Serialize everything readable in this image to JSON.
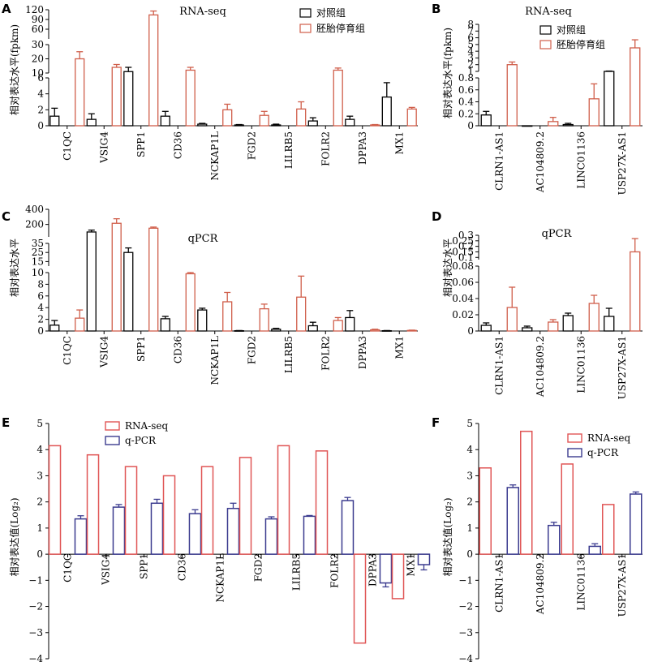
{
  "colors": {
    "control": "#000000",
    "stopped": "#d05e4a",
    "rnaseq": "#e05555",
    "qpcr": "#3b3b8f"
  },
  "chart_data": [
    {
      "panel": "A",
      "type": "bar",
      "title": "RNA-seq",
      "ylabel": "相对表达水平(fpkm)",
      "broken_axis": true,
      "segments": [
        {
          "range": [
            0,
            6
          ],
          "ticks": [
            0,
            2,
            4,
            6
          ]
        },
        {
          "range": [
            10,
            30
          ],
          "ticks": [
            10,
            20,
            30
          ]
        },
        {
          "range": [
            30,
            120
          ],
          "ticks": [
            60,
            90,
            120
          ]
        }
      ],
      "categories": [
        "C1QC",
        "VSIG4",
        "SPP1",
        "CD36",
        "NCKAP1L",
        "FGD2",
        "LILRB5",
        "FOLR2",
        "DPPA3",
        "MX1"
      ],
      "legend_position": "top-right",
      "series": [
        {
          "name": "对照组",
          "color": "#000000",
          "values": [
            1.2,
            0.8,
            11,
            1.2,
            0.2,
            0.1,
            0.1,
            0.6,
            0.8,
            3.6
          ],
          "errors": [
            1.0,
            0.7,
            3,
            0.6,
            0.1,
            0.05,
            0.1,
            0.4,
            0.4,
            1.8
          ]
        },
        {
          "name": "胚胎停育组",
          "color": "#d05e4a",
          "values": [
            20,
            14,
            104,
            12,
            2.0,
            1.3,
            2.1,
            12,
            0.1,
            2.1
          ],
          "errors": [
            5,
            2,
            12,
            2,
            0.7,
            0.5,
            0.9,
            1.5,
            0.05,
            0.2
          ]
        }
      ]
    },
    {
      "panel": "B",
      "type": "bar",
      "title": "RNA-seq",
      "ylabel": "相对表达水平(fpkm)",
      "broken_axis": true,
      "segments": [
        {
          "range": [
            0,
            0.8
          ],
          "ticks": [
            0,
            0.2,
            0.4,
            0.6,
            0.8
          ]
        },
        {
          "range": [
            1,
            8
          ],
          "ticks": [
            1,
            2,
            3,
            4,
            5,
            6,
            7,
            8
          ]
        }
      ],
      "categories": [
        "CLRN1-AS1",
        "AC104809.2",
        "LINC01136",
        "USP27X-AS1"
      ],
      "legend_position": "top-left",
      "series": [
        {
          "name": "对照组",
          "color": "#000000",
          "values": [
            0.18,
            0.0,
            0.02,
            0.95
          ],
          "errors": [
            0.06,
            0.0,
            0.02,
            0.1
          ]
        },
        {
          "name": "胚胎停育组",
          "color": "#d05e4a",
          "values": [
            2.0,
            0.07,
            0.45,
            4.5
          ],
          "errors": [
            0.4,
            0.07,
            0.25,
            1.2
          ]
        }
      ]
    },
    {
      "panel": "C",
      "type": "bar",
      "title": "qPCR",
      "ylabel": "相对表达水平",
      "broken_axis": true,
      "segments": [
        {
          "range": [
            0,
            10
          ],
          "ticks": [
            0,
            2,
            4,
            6,
            8,
            10
          ]
        },
        {
          "range": [
            10,
            35
          ],
          "ticks": [
            15,
            25,
            35
          ]
        },
        {
          "range": [
            35,
            400
          ],
          "ticks": [
            200,
            400
          ]
        }
      ],
      "categories": [
        "C1QC",
        "VSIG4",
        "SPP1",
        "CD36",
        "NCKAP1L",
        "FGD2",
        "LILRB5",
        "FOLR2",
        "DPPA3",
        "MX1"
      ],
      "series": [
        {
          "name": "对照组",
          "color": "#000000",
          "values": [
            1.0,
            100,
            25,
            2.1,
            3.6,
            0.05,
            0.3,
            0.9,
            2.3,
            0.05
          ],
          "errors": [
            0.8,
            25,
            5,
            0.4,
            0.3,
            0.03,
            0.15,
            0.6,
            1.2,
            0.03
          ]
        },
        {
          "name": "胚胎停育组",
          "color": "#d05e4a",
          "values": [
            2.2,
            215,
            150,
            9.8,
            5.0,
            3.8,
            5.8,
            1.8,
            0.2,
            0.1
          ],
          "errors": [
            1.4,
            60,
            15,
            0.2,
            1.6,
            0.8,
            3.6,
            0.5,
            0.1,
            0.05
          ]
        }
      ]
    },
    {
      "panel": "D",
      "type": "bar",
      "title": "qPCR",
      "ylabel": "相对表达水平",
      "broken_axis": true,
      "segments": [
        {
          "range": [
            0,
            0.08
          ],
          "ticks": [
            0,
            0.02,
            0.04,
            0.06,
            0.08
          ]
        },
        {
          "range": [
            0.08,
            0.3
          ],
          "ticks": [
            0.1,
            0.15,
            0.2,
            0.25,
            0.3
          ]
        }
      ],
      "categories": [
        "CLRN1-AS1",
        "AC104809.2",
        "LINC01136",
        "USP27X-AS1"
      ],
      "series": [
        {
          "name": "对照组",
          "color": "#000000",
          "values": [
            0.007,
            0.004,
            0.019,
            0.018
          ],
          "errors": [
            0.003,
            0.002,
            0.003,
            0.01
          ]
        },
        {
          "name": "胚胎停育组",
          "color": "#d05e4a",
          "values": [
            0.029,
            0.011,
            0.034,
            0.15
          ],
          "errors": [
            0.025,
            0.003,
            0.01,
            0.12
          ]
        }
      ]
    },
    {
      "panel": "E",
      "type": "bar",
      "ylabel": "相对表达值(Log₂)",
      "ylim": [
        -4,
        5
      ],
      "ticks": [
        -4,
        -3,
        -2,
        -1,
        0,
        1,
        2,
        3,
        4,
        5
      ],
      "categories": [
        "C1QC",
        "VSIG4",
        "SPP1",
        "CD36",
        "NCKAP1L",
        "FGD2",
        "LILRB5",
        "FOLR2",
        "DPPA3",
        "MX1"
      ],
      "legend_position": "top-left",
      "series": [
        {
          "name": "RNA-seq",
          "color": "#e05555",
          "values": [
            4.15,
            3.8,
            3.35,
            3.0,
            3.35,
            3.7,
            4.15,
            3.95,
            -3.4,
            -1.7
          ],
          "errors": null
        },
        {
          "name": "q-PCR",
          "color": "#3b3b8f",
          "values": [
            1.35,
            1.8,
            1.95,
            1.55,
            1.75,
            1.35,
            1.45,
            2.05,
            -1.1,
            -0.4
          ],
          "errors": [
            0.12,
            0.1,
            0.15,
            0.15,
            0.2,
            0.08,
            0.03,
            0.12,
            0.15,
            0.2
          ]
        }
      ]
    },
    {
      "panel": "F",
      "type": "bar",
      "ylabel": "相对表达值(Log₂)",
      "ylim": [
        -4,
        5
      ],
      "ticks": [
        -4,
        -3,
        -2,
        -1,
        0,
        1,
        2,
        3,
        4,
        5
      ],
      "categories": [
        "CLRN1-AS1",
        "AC104809.2",
        "LINC01136",
        "USP27X-AS1"
      ],
      "legend_position": "top-right",
      "series": [
        {
          "name": "RNA-seq",
          "color": "#e05555",
          "values": [
            3.3,
            4.7,
            3.45,
            1.9
          ],
          "errors": null
        },
        {
          "name": "q-PCR",
          "color": "#3b3b8f",
          "values": [
            2.55,
            1.1,
            0.3,
            2.3
          ],
          "errors": [
            0.1,
            0.12,
            0.1,
            0.08
          ]
        }
      ]
    }
  ]
}
